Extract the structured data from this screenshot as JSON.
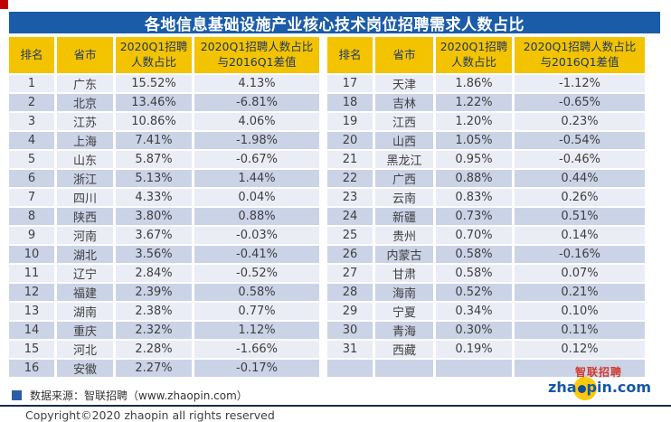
{
  "page": {
    "title": "各地信息基础设施产业核心技术岗位招聘需求人数占比"
  },
  "table": {
    "headers": {
      "rank": "排名",
      "province": "省市",
      "share": "2020Q1招聘\n人数占比",
      "diff": "2020Q1招聘人数占比\n与2016Q1差值"
    },
    "left_rows": [
      {
        "rank": "1",
        "province": "广东",
        "share": "15.52%",
        "diff": "4.13%"
      },
      {
        "rank": "2",
        "province": "北京",
        "share": "13.46%",
        "diff": "-6.81%"
      },
      {
        "rank": "3",
        "province": "江苏",
        "share": "10.86%",
        "diff": "4.06%"
      },
      {
        "rank": "4",
        "province": "上海",
        "share": "7.41%",
        "diff": "-1.98%"
      },
      {
        "rank": "5",
        "province": "山东",
        "share": "5.87%",
        "diff": "-0.67%"
      },
      {
        "rank": "6",
        "province": "浙江",
        "share": "5.13%",
        "diff": "1.44%"
      },
      {
        "rank": "7",
        "province": "四川",
        "share": "4.33%",
        "diff": "0.04%"
      },
      {
        "rank": "8",
        "province": "陕西",
        "share": "3.80%",
        "diff": "0.88%"
      },
      {
        "rank": "9",
        "province": "河南",
        "share": "3.67%",
        "diff": "-0.03%"
      },
      {
        "rank": "10",
        "province": "湖北",
        "share": "3.56%",
        "diff": "-0.41%"
      },
      {
        "rank": "11",
        "province": "辽宁",
        "share": "2.84%",
        "diff": "-0.52%"
      },
      {
        "rank": "12",
        "province": "福建",
        "share": "2.39%",
        "diff": "0.58%"
      },
      {
        "rank": "13",
        "province": "湖南",
        "share": "2.38%",
        "diff": "0.77%"
      },
      {
        "rank": "14",
        "province": "重庆",
        "share": "2.32%",
        "diff": "1.12%"
      },
      {
        "rank": "15",
        "province": "河北",
        "share": "2.28%",
        "diff": "-1.66%"
      },
      {
        "rank": "16",
        "province": "安徽",
        "share": "2.27%",
        "diff": "-0.17%"
      }
    ],
    "right_rows": [
      {
        "rank": "17",
        "province": "天津",
        "share": "1.86%",
        "diff": "-1.12%"
      },
      {
        "rank": "18",
        "province": "吉林",
        "share": "1.22%",
        "diff": "-0.65%"
      },
      {
        "rank": "19",
        "province": "江西",
        "share": "1.20%",
        "diff": "0.23%"
      },
      {
        "rank": "20",
        "province": "山西",
        "share": "1.05%",
        "diff": "-0.54%"
      },
      {
        "rank": "21",
        "province": "黑龙江",
        "share": "0.95%",
        "diff": "-0.46%"
      },
      {
        "rank": "22",
        "province": "广西",
        "share": "0.88%",
        "diff": "0.44%"
      },
      {
        "rank": "23",
        "province": "云南",
        "share": "0.83%",
        "diff": "0.26%"
      },
      {
        "rank": "24",
        "province": "新疆",
        "share": "0.73%",
        "diff": "0.51%"
      },
      {
        "rank": "25",
        "province": "贵州",
        "share": "0.70%",
        "diff": "0.14%"
      },
      {
        "rank": "26",
        "province": "内蒙古",
        "share": "0.58%",
        "diff": "-0.16%"
      },
      {
        "rank": "27",
        "province": "甘肃",
        "share": "0.58%",
        "diff": "0.07%"
      },
      {
        "rank": "28",
        "province": "海南",
        "share": "0.52%",
        "diff": "0.21%"
      },
      {
        "rank": "29",
        "province": "宁夏",
        "share": "0.34%",
        "diff": "0.10%"
      },
      {
        "rank": "30",
        "province": "青海",
        "share": "0.30%",
        "diff": "0.11%"
      },
      {
        "rank": "31",
        "province": "西藏",
        "share": "0.19%",
        "diff": "0.12%"
      },
      {
        "rank": "",
        "province": "",
        "share": "",
        "diff": ""
      }
    ]
  },
  "footer": {
    "source": "数据来源：智联招聘（www.zhaopin.com）",
    "copyright": "Copyright©2020 zhaopin all rights reserved"
  },
  "logo": {
    "cn": "智联招聘",
    "en_left": "zha",
    "en_right": "pin.com"
  },
  "colors": {
    "title_bar_blue": "#1B5CA8",
    "header_gold": "#F3C300",
    "header_text_navy": "#1F3864",
    "row_light": "#EAEDF5",
    "row_dark": "#CBD3E7",
    "accent_red": "#C00000",
    "logo_yellow": "#F9CB0B",
    "logo_red": "#D33A2C",
    "logo_blue": "#1558A8"
  },
  "chart_data": {
    "type": "table",
    "title": "各地信息基础设施产业核心技术岗位招聘需求人数占比",
    "columns": [
      "排名",
      "省市",
      "2020Q1招聘人数占比",
      "2020Q1招聘人数占比与2016Q1差值"
    ],
    "rows": [
      [
        1,
        "广东",
        "15.52%",
        "4.13%"
      ],
      [
        2,
        "北京",
        "13.46%",
        "-6.81%"
      ],
      [
        3,
        "江苏",
        "10.86%",
        "4.06%"
      ],
      [
        4,
        "上海",
        "7.41%",
        "-1.98%"
      ],
      [
        5,
        "山东",
        "5.87%",
        "-0.67%"
      ],
      [
        6,
        "浙江",
        "5.13%",
        "1.44%"
      ],
      [
        7,
        "四川",
        "4.33%",
        "0.04%"
      ],
      [
        8,
        "陕西",
        "3.80%",
        "0.88%"
      ],
      [
        9,
        "河南",
        "3.67%",
        "-0.03%"
      ],
      [
        10,
        "湖北",
        "3.56%",
        "-0.41%"
      ],
      [
        11,
        "辽宁",
        "2.84%",
        "-0.52%"
      ],
      [
        12,
        "福建",
        "2.39%",
        "0.58%"
      ],
      [
        13,
        "湖南",
        "2.38%",
        "0.77%"
      ],
      [
        14,
        "重庆",
        "2.32%",
        "1.12%"
      ],
      [
        15,
        "河北",
        "2.28%",
        "-1.66%"
      ],
      [
        16,
        "安徽",
        "2.27%",
        "-0.17%"
      ],
      [
        17,
        "天津",
        "1.86%",
        "-1.12%"
      ],
      [
        18,
        "吉林",
        "1.22%",
        "-0.65%"
      ],
      [
        19,
        "江西",
        "1.20%",
        "0.23%"
      ],
      [
        20,
        "山西",
        "1.05%",
        "-0.54%"
      ],
      [
        21,
        "黑龙江",
        "0.95%",
        "-0.46%"
      ],
      [
        22,
        "广西",
        "0.88%",
        "0.44%"
      ],
      [
        23,
        "云南",
        "0.83%",
        "0.26%"
      ],
      [
        24,
        "新疆",
        "0.73%",
        "0.51%"
      ],
      [
        25,
        "贵州",
        "0.70%",
        "0.14%"
      ],
      [
        26,
        "内蒙古",
        "0.58%",
        "-0.16%"
      ],
      [
        27,
        "甘肃",
        "0.58%",
        "0.07%"
      ],
      [
        28,
        "海南",
        "0.52%",
        "0.21%"
      ],
      [
        29,
        "宁夏",
        "0.34%",
        "0.10%"
      ],
      [
        30,
        "青海",
        "0.30%",
        "0.11%"
      ],
      [
        31,
        "西藏",
        "0.19%",
        "0.12%"
      ]
    ],
    "source": "数据来源：智联招聘（www.zhaopin.com）",
    "layout": "split-two-column-table, ranks 1-16 left, 17-31 right"
  }
}
